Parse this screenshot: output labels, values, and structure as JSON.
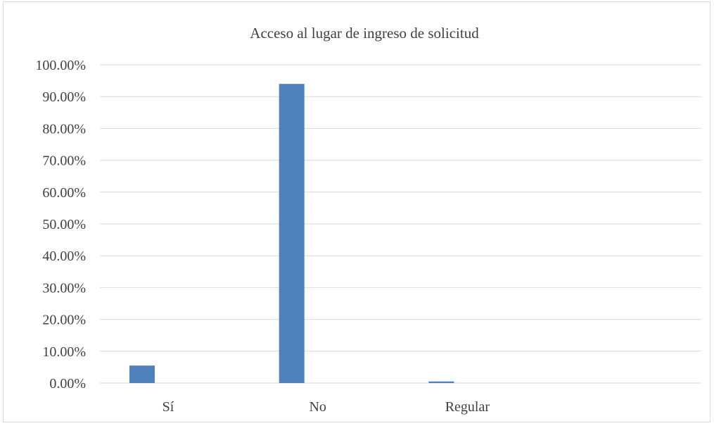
{
  "chart_data": {
    "type": "bar",
    "title": "Acceso al lugar de ingreso de solicitud",
    "categories": [
      "Sí",
      "No",
      "Regular"
    ],
    "values": [
      0.055,
      0.94,
      0.005
    ],
    "ylim": [
      0,
      1.0
    ],
    "yticks": [
      0,
      0.1,
      0.2,
      0.3,
      0.4,
      0.5,
      0.6,
      0.7,
      0.8,
      0.9,
      1.0
    ],
    "ytick_labels": [
      "0.00%",
      "10.00%",
      "20.00%",
      "30.00%",
      "40.00%",
      "50.00%",
      "60.00%",
      "70.00%",
      "80.00%",
      "90.00%",
      "100.00%"
    ],
    "xlabel": "",
    "ylabel": "",
    "grid": true,
    "legend": "none",
    "bar_color": "#4f81bd"
  }
}
